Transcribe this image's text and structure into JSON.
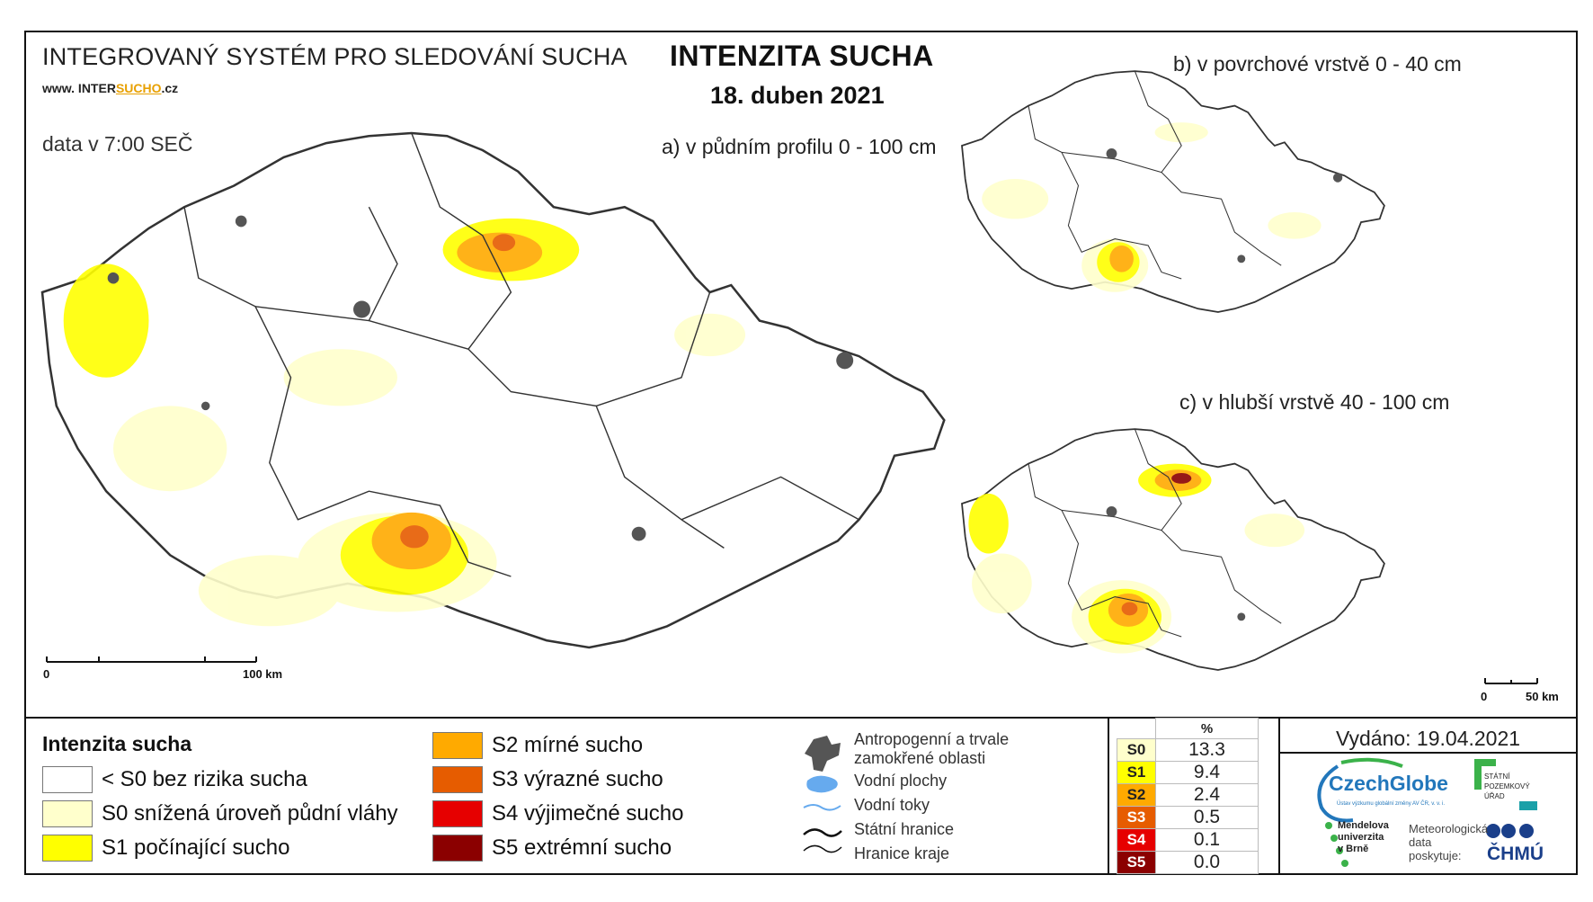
{
  "header": {
    "system_title": "INTEGROVANÝ SYSTÉM PRO SLEDOVÁNÍ SUCHA",
    "website_prefix": "www. INTER",
    "website_highlight": "SUCHO",
    "website_suffix": ".cz",
    "data_time": "data v 7:00 SEČ",
    "main_title": "INTENZITA SUCHA",
    "date": "18. duben 2021"
  },
  "maps": {
    "a_title": "a) v půdním profilu 0 - 100 cm",
    "b_title": "b) v povrchové vrstvě 0 - 40 cm",
    "c_title": "c) v hlubší vrstvě 40 - 100 cm",
    "a_scale": {
      "start": "0",
      "end": "100 km"
    },
    "c_scale": {
      "start": "0",
      "end": "50 km"
    }
  },
  "legend": {
    "title": "Intenzita sucha",
    "classes": [
      {
        "label": "< S0 bez rizika sucha",
        "color": "#ffffff"
      },
      {
        "label": "S0 snížená úroveň půdní vláhy",
        "color": "#ffffcc"
      },
      {
        "label": "S1 počínající sucho",
        "color": "#ffff00"
      },
      {
        "label": "S2 mírné sucho",
        "color": "#ffaa00"
      },
      {
        "label": "S3 výrazné sucho",
        "color": "#e65c00"
      },
      {
        "label": "S4 výjimečné sucho",
        "color": "#e60000"
      },
      {
        "label": "S5 extrémní sucho",
        "color": "#8b0000"
      }
    ],
    "symbols": [
      {
        "label": "Antropogenní a trvale zamokřené oblasti",
        "icon": "urban-area-icon"
      },
      {
        "label": "Vodní plochy",
        "icon": "water-body-icon"
      },
      {
        "label": "Vodní toky",
        "icon": "river-icon"
      },
      {
        "label": "Státní hranice",
        "icon": "state-border-icon"
      },
      {
        "label": "Hranice kraje",
        "icon": "region-border-icon"
      }
    ]
  },
  "stats": {
    "header": "%",
    "rows": [
      {
        "code": "S0",
        "value": "13.3",
        "color": "#ffffcc"
      },
      {
        "code": "S1",
        "value": "9.4",
        "color": "#ffff00"
      },
      {
        "code": "S2",
        "value": "2.4",
        "color": "#ffaa00"
      },
      {
        "code": "S3",
        "value": "0.5",
        "color": "#e65c00"
      },
      {
        "code": "S4",
        "value": "0.1",
        "color": "#e60000"
      },
      {
        "code": "S5",
        "value": "0.0",
        "color": "#8b0000"
      }
    ]
  },
  "footer": {
    "issued": "Vydáno: 19.04.2021",
    "czechglobe": "CzechGlobe",
    "czechglobe_sub": "Ústav výzkumu globální změny AV ČR, v. v. i.",
    "spu_lines": [
      "STÁTNÍ",
      "POZEMKOVÝ",
      "ÚŘAD"
    ],
    "mendel_lines": [
      "Mendelova",
      "univerzita",
      "v Brně"
    ],
    "meteo_lines": [
      "Meteorologická",
      "data",
      "poskytuje:"
    ],
    "chmu": "ČHMÚ"
  }
}
